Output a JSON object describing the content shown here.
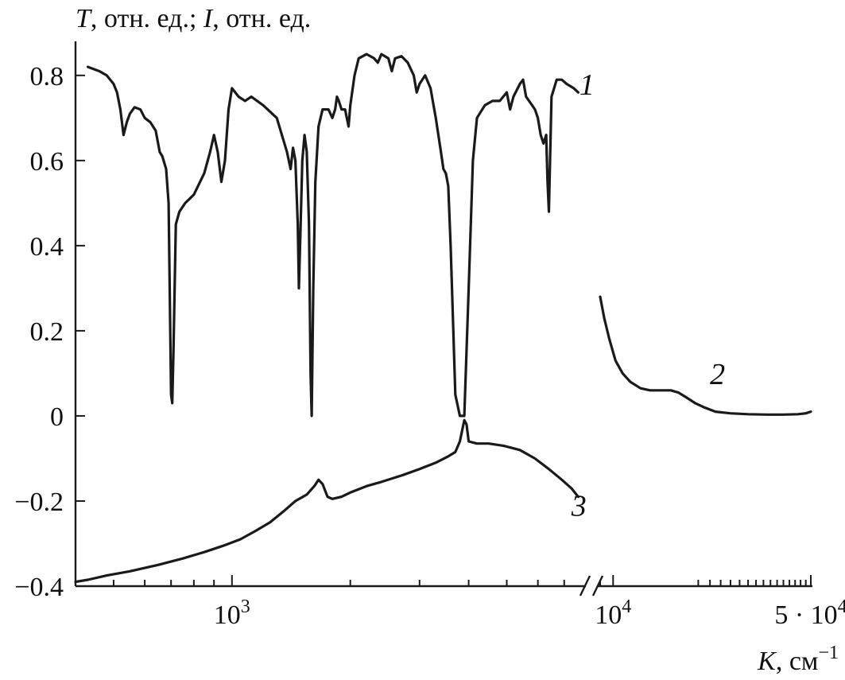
{
  "chart_data": {
    "type": "line",
    "ylabel_parts": [
      {
        "text": "T",
        "italic": true
      },
      {
        "text": ", отн. ед.; ",
        "italic": false
      },
      {
        "text": "I",
        "italic": true
      },
      {
        "text": ", отн. ед.",
        "italic": false
      }
    ],
    "xlabel_parts": [
      {
        "text": "K",
        "italic": true
      },
      {
        "text": ", см",
        "italic": false
      },
      {
        "text": "−1",
        "italic": false,
        "sup": true
      }
    ],
    "x_scale": "log",
    "x_axis_break": [
      7800,
      9000
    ],
    "xlim_left": [
      400,
      7800
    ],
    "xlim_right": [
      9000,
      50000
    ],
    "ylim": [
      -0.4,
      0.88
    ],
    "y_ticks": [
      {
        "value": 0.8,
        "label": "0.8"
      },
      {
        "value": 0.6,
        "label": "0.6"
      },
      {
        "value": 0.4,
        "label": "0.4"
      },
      {
        "value": 0.2,
        "label": "0.2"
      },
      {
        "value": 0.0,
        "label": "0"
      },
      {
        "value": -0.2,
        "label": "−0.2"
      },
      {
        "value": -0.4,
        "label": "−0.4"
      }
    ],
    "x_tick_labels": [
      {
        "value": 1000,
        "base": "10",
        "exp": "3"
      },
      {
        "value": 10000,
        "base": "10",
        "exp": "4"
      },
      {
        "value": 50000,
        "base": "5 · 10",
        "exp": "4"
      }
    ],
    "grid": false,
    "series": [
      {
        "label": "1",
        "label_at": [
          7650,
          0.755
        ],
        "points": [
          [
            430,
            0.82
          ],
          [
            460,
            0.81
          ],
          [
            480,
            0.8
          ],
          [
            500,
            0.78
          ],
          [
            510,
            0.76
          ],
          [
            520,
            0.72
          ],
          [
            530,
            0.66
          ],
          [
            540,
            0.69
          ],
          [
            550,
            0.71
          ],
          [
            565,
            0.725
          ],
          [
            585,
            0.72
          ],
          [
            600,
            0.7
          ],
          [
            620,
            0.69
          ],
          [
            640,
            0.67
          ],
          [
            655,
            0.62
          ],
          [
            665,
            0.61
          ],
          [
            680,
            0.58
          ],
          [
            690,
            0.5
          ],
          [
            700,
            0.05
          ],
          [
            705,
            0.03
          ],
          [
            710,
            0.15
          ],
          [
            720,
            0.45
          ],
          [
            735,
            0.48
          ],
          [
            760,
            0.5
          ],
          [
            800,
            0.52
          ],
          [
            850,
            0.57
          ],
          [
            880,
            0.62
          ],
          [
            900,
            0.66
          ],
          [
            920,
            0.62
          ],
          [
            940,
            0.55
          ],
          [
            960,
            0.6
          ],
          [
            980,
            0.72
          ],
          [
            1000,
            0.77
          ],
          [
            1040,
            0.75
          ],
          [
            1080,
            0.74
          ],
          [
            1120,
            0.75
          ],
          [
            1200,
            0.73
          ],
          [
            1300,
            0.7
          ],
          [
            1380,
            0.62
          ],
          [
            1410,
            0.58
          ],
          [
            1430,
            0.63
          ],
          [
            1450,
            0.6
          ],
          [
            1470,
            0.45
          ],
          [
            1480,
            0.3
          ],
          [
            1495,
            0.45
          ],
          [
            1510,
            0.6
          ],
          [
            1530,
            0.66
          ],
          [
            1550,
            0.62
          ],
          [
            1570,
            0.45
          ],
          [
            1585,
            0.1
          ],
          [
            1595,
            0.0
          ],
          [
            1610,
            0.3
          ],
          [
            1630,
            0.55
          ],
          [
            1660,
            0.68
          ],
          [
            1700,
            0.72
          ],
          [
            1760,
            0.72
          ],
          [
            1800,
            0.7
          ],
          [
            1830,
            0.72
          ],
          [
            1850,
            0.75
          ],
          [
            1870,
            0.74
          ],
          [
            1900,
            0.72
          ],
          [
            1940,
            0.72
          ],
          [
            1960,
            0.7
          ],
          [
            1980,
            0.68
          ],
          [
            2000,
            0.73
          ],
          [
            2050,
            0.8
          ],
          [
            2100,
            0.84
          ],
          [
            2200,
            0.85
          ],
          [
            2300,
            0.84
          ],
          [
            2350,
            0.83
          ],
          [
            2400,
            0.85
          ],
          [
            2500,
            0.84
          ],
          [
            2550,
            0.81
          ],
          [
            2600,
            0.84
          ],
          [
            2700,
            0.845
          ],
          [
            2800,
            0.83
          ],
          [
            2900,
            0.8
          ],
          [
            2950,
            0.76
          ],
          [
            3000,
            0.78
          ],
          [
            3100,
            0.8
          ],
          [
            3200,
            0.77
          ],
          [
            3300,
            0.7
          ],
          [
            3400,
            0.62
          ],
          [
            3450,
            0.58
          ],
          [
            3500,
            0.57
          ],
          [
            3550,
            0.54
          ],
          [
            3600,
            0.4
          ],
          [
            3700,
            0.05
          ],
          [
            3800,
            0.0
          ],
          [
            3900,
            0.0
          ],
          [
            4000,
            0.3
          ],
          [
            4100,
            0.6
          ],
          [
            4200,
            0.7
          ],
          [
            4400,
            0.73
          ],
          [
            4600,
            0.74
          ],
          [
            4800,
            0.74
          ],
          [
            5000,
            0.76
          ],
          [
            5100,
            0.72
          ],
          [
            5200,
            0.75
          ],
          [
            5400,
            0.78
          ],
          [
            5500,
            0.79
          ],
          [
            5600,
            0.75
          ],
          [
            5700,
            0.74
          ],
          [
            5900,
            0.72
          ],
          [
            6000,
            0.7
          ],
          [
            6100,
            0.66
          ],
          [
            6200,
            0.64
          ],
          [
            6300,
            0.66
          ],
          [
            6350,
            0.55
          ],
          [
            6400,
            0.48
          ],
          [
            6450,
            0.62
          ],
          [
            6500,
            0.75
          ],
          [
            6700,
            0.79
          ],
          [
            6900,
            0.79
          ],
          [
            7100,
            0.78
          ],
          [
            7400,
            0.77
          ],
          [
            7600,
            0.76
          ]
        ]
      },
      {
        "label": "2",
        "label_at": [
          22000,
          0.075
        ],
        "points": [
          [
            9000,
            0.28
          ],
          [
            9300,
            0.23
          ],
          [
            9700,
            0.18
          ],
          [
            10200,
            0.13
          ],
          [
            10800,
            0.1
          ],
          [
            11500,
            0.08
          ],
          [
            12500,
            0.065
          ],
          [
            13500,
            0.06
          ],
          [
            15000,
            0.06
          ],
          [
            16000,
            0.06
          ],
          [
            17000,
            0.055
          ],
          [
            18000,
            0.045
          ],
          [
            19500,
            0.03
          ],
          [
            21000,
            0.02
          ],
          [
            23000,
            0.01
          ],
          [
            26000,
            0.006
          ],
          [
            30000,
            0.004
          ],
          [
            35000,
            0.003
          ],
          [
            40000,
            0.003
          ],
          [
            45000,
            0.004
          ],
          [
            48000,
            0.006
          ],
          [
            50000,
            0.01
          ]
        ]
      },
      {
        "label": "3",
        "label_at": [
          7300,
          -0.235
        ],
        "points": [
          [
            400,
            -0.39
          ],
          [
            430,
            -0.385
          ],
          [
            480,
            -0.375
          ],
          [
            550,
            -0.365
          ],
          [
            650,
            -0.35
          ],
          [
            750,
            -0.335
          ],
          [
            850,
            -0.32
          ],
          [
            950,
            -0.305
          ],
          [
            1050,
            -0.29
          ],
          [
            1150,
            -0.27
          ],
          [
            1250,
            -0.25
          ],
          [
            1350,
            -0.225
          ],
          [
            1450,
            -0.2
          ],
          [
            1550,
            -0.185
          ],
          [
            1620,
            -0.165
          ],
          [
            1660,
            -0.15
          ],
          [
            1700,
            -0.16
          ],
          [
            1750,
            -0.19
          ],
          [
            1800,
            -0.195
          ],
          [
            1900,
            -0.19
          ],
          [
            2000,
            -0.18
          ],
          [
            2200,
            -0.165
          ],
          [
            2400,
            -0.155
          ],
          [
            2700,
            -0.14
          ],
          [
            3000,
            -0.125
          ],
          [
            3300,
            -0.11
          ],
          [
            3550,
            -0.095
          ],
          [
            3700,
            -0.085
          ],
          [
            3800,
            -0.06
          ],
          [
            3900,
            -0.01
          ],
          [
            3950,
            -0.02
          ],
          [
            4000,
            -0.06
          ],
          [
            4200,
            -0.065
          ],
          [
            4500,
            -0.065
          ],
          [
            4900,
            -0.07
          ],
          [
            5400,
            -0.08
          ],
          [
            5900,
            -0.1
          ],
          [
            6400,
            -0.125
          ],
          [
            6900,
            -0.15
          ],
          [
            7300,
            -0.17
          ],
          [
            7600,
            -0.19
          ]
        ]
      }
    ]
  }
}
